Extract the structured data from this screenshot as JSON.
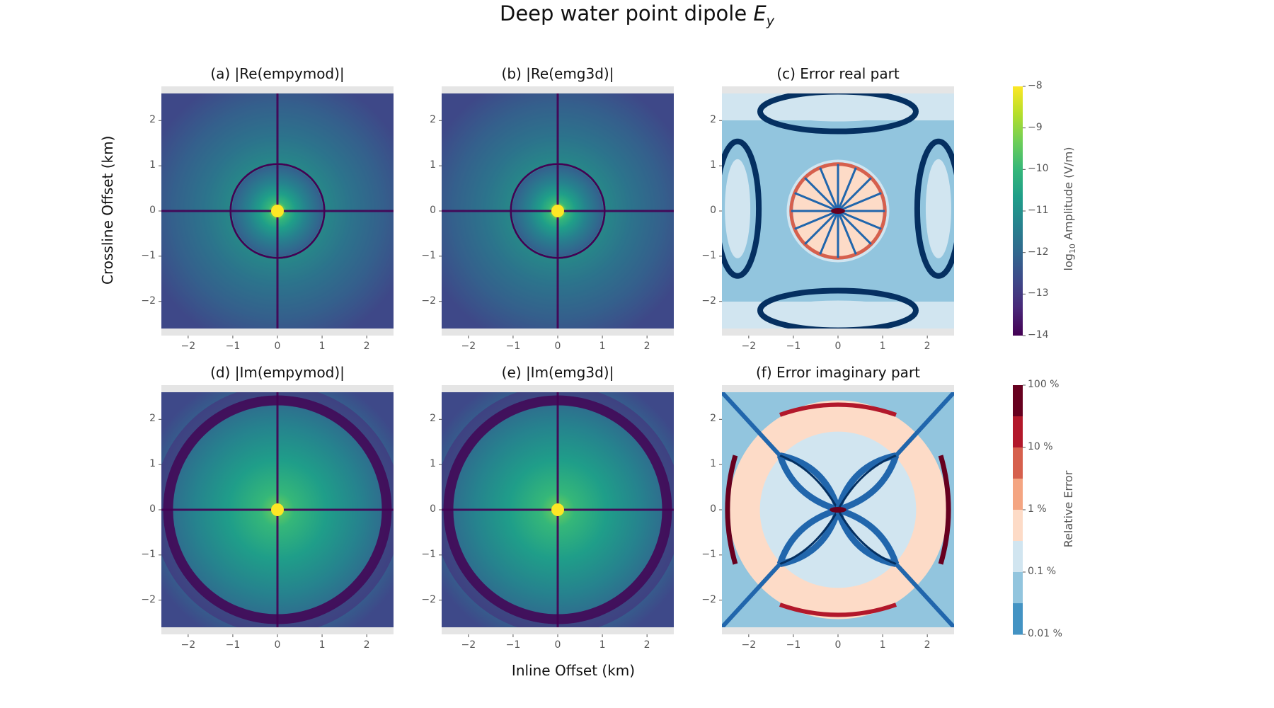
{
  "figure": {
    "title": "Deep water point dipole ",
    "title_math_main": "E",
    "title_math_sub": "y",
    "xlabel": "Inline Offset (km)",
    "ylabel": "Crossline Offset (km)"
  },
  "chart_data": [
    {
      "type": "heatmap",
      "panel": "a",
      "title": "(a) |Re(empymod)|",
      "field": "log10 |Re(Ey)|",
      "x_ticks": [
        -2,
        -1,
        0,
        1,
        2
      ],
      "y_ticks": [
        -2,
        -1,
        0,
        1,
        2
      ],
      "xlim": [
        -2.6,
        2.6
      ],
      "ylim": [
        -2.6,
        2.6
      ],
      "colormap": "viridis",
      "zlim": [
        -14,
        -8
      ],
      "ring_radius_km": 1.05
    },
    {
      "type": "heatmap",
      "panel": "b",
      "title": "(b) |Re(emg3d)|",
      "field": "log10 |Re(Ey)|",
      "x_ticks": [
        -2,
        -1,
        0,
        1,
        2
      ],
      "y_ticks": [
        -2,
        -1,
        0,
        1,
        2
      ],
      "xlim": [
        -2.6,
        2.6
      ],
      "ylim": [
        -2.6,
        2.6
      ],
      "colormap": "viridis",
      "zlim": [
        -14,
        -8
      ],
      "ring_radius_km": 1.05
    },
    {
      "type": "heatmap",
      "panel": "c",
      "title": "(c) Error real part",
      "field": "relative error",
      "x_ticks": [
        -2,
        -1,
        0,
        1,
        2
      ],
      "y_ticks": [
        -2,
        -1,
        0,
        1,
        2
      ],
      "xlim": [
        -2.6,
        2.6
      ],
      "ylim": [
        -2.6,
        2.6
      ],
      "colormap": "RdBu_r (discrete)"
    },
    {
      "type": "heatmap",
      "panel": "d",
      "title": "(d) |Im(empymod)|",
      "field": "log10 |Im(Ey)|",
      "x_ticks": [
        -2,
        -1,
        0,
        1,
        2
      ],
      "y_ticks": [
        -2,
        -1,
        0,
        1,
        2
      ],
      "xlim": [
        -2.6,
        2.6
      ],
      "ylim": [
        -2.6,
        2.6
      ],
      "colormap": "viridis",
      "zlim": [
        -14,
        -8
      ],
      "ring_radius_km": 2.45
    },
    {
      "type": "heatmap",
      "panel": "e",
      "title": "(e) |Im(emg3d)|",
      "field": "log10 |Im(Ey)|",
      "x_ticks": [
        -2,
        -1,
        0,
        1,
        2
      ],
      "y_ticks": [
        -2,
        -1,
        0,
        1,
        2
      ],
      "xlim": [
        -2.6,
        2.6
      ],
      "ylim": [
        -2.6,
        2.6
      ],
      "colormap": "viridis",
      "zlim": [
        -14,
        -8
      ],
      "ring_radius_km": 2.45
    },
    {
      "type": "heatmap",
      "panel": "f",
      "title": "(f) Error imaginary part",
      "field": "relative error",
      "x_ticks": [
        -2,
        -1,
        0,
        1,
        2
      ],
      "y_ticks": [
        -2,
        -1,
        0,
        1,
        2
      ],
      "xlim": [
        -2.6,
        2.6
      ],
      "ylim": [
        -2.6,
        2.6
      ],
      "colormap": "RdBu_r (discrete)"
    }
  ],
  "colorbars": {
    "amplitude": {
      "label_prefix": "log",
      "label_sub": "10",
      "label_suffix": " Amplitude (V/m)",
      "ticks": [
        -8,
        -9,
        -10,
        -11,
        -12,
        -13,
        -14
      ],
      "tick_labels": [
        "−8",
        "−9",
        "−10",
        "−11",
        "−12",
        "−13",
        "−14"
      ],
      "range": [
        -14,
        -8
      ],
      "colormap": "viridis"
    },
    "error": {
      "label": "Relative Error",
      "tick_labels": [
        "100 %",
        "10 %",
        "1 %",
        "0.1 %",
        "0.01 %"
      ],
      "tick_values_percent": [
        100,
        10,
        1,
        0.1,
        0.01
      ],
      "bins": [
        "#053061",
        "#2166ac",
        "#4393c3",
        "#92c5de",
        "#d1e5f0",
        "#fddbc7",
        "#f4a582",
        "#d6604d",
        "#b2182b",
        "#67001f"
      ],
      "n_bins_shown": 8
    }
  },
  "colors": {
    "axes_background": "#e5e5e5",
    "viridis": [
      "#440154",
      "#482878",
      "#3e4989",
      "#31688e",
      "#26828e",
      "#1f9e89",
      "#35b779",
      "#6ece58",
      "#b5de2b",
      "#fde725"
    ],
    "error_colors": [
      "#053061",
      "#2166ac",
      "#4393c3",
      "#92c5de",
      "#d1e5f0",
      "#fddbc7",
      "#f4a582",
      "#d6604d",
      "#b2182b",
      "#67001f"
    ]
  }
}
